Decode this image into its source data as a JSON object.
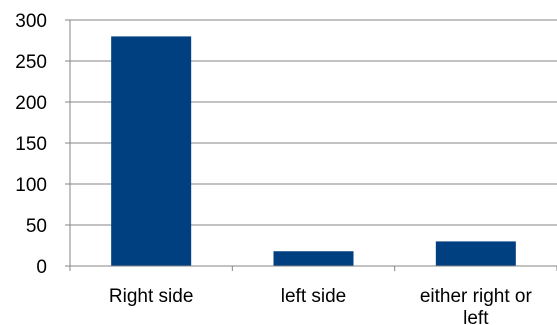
{
  "chart_data": {
    "type": "bar",
    "categories": [
      [
        "Right side"
      ],
      [
        "left side"
      ],
      [
        "either right or",
        "left"
      ]
    ],
    "values": [
      280,
      18,
      30
    ],
    "ylim": [
      0,
      300
    ],
    "yticks": [
      0,
      50,
      100,
      150,
      200,
      250,
      300
    ],
    "grid": true,
    "colors": {
      "bar": "#003f80",
      "grid": "#868686",
      "axis": "#868686"
    }
  }
}
